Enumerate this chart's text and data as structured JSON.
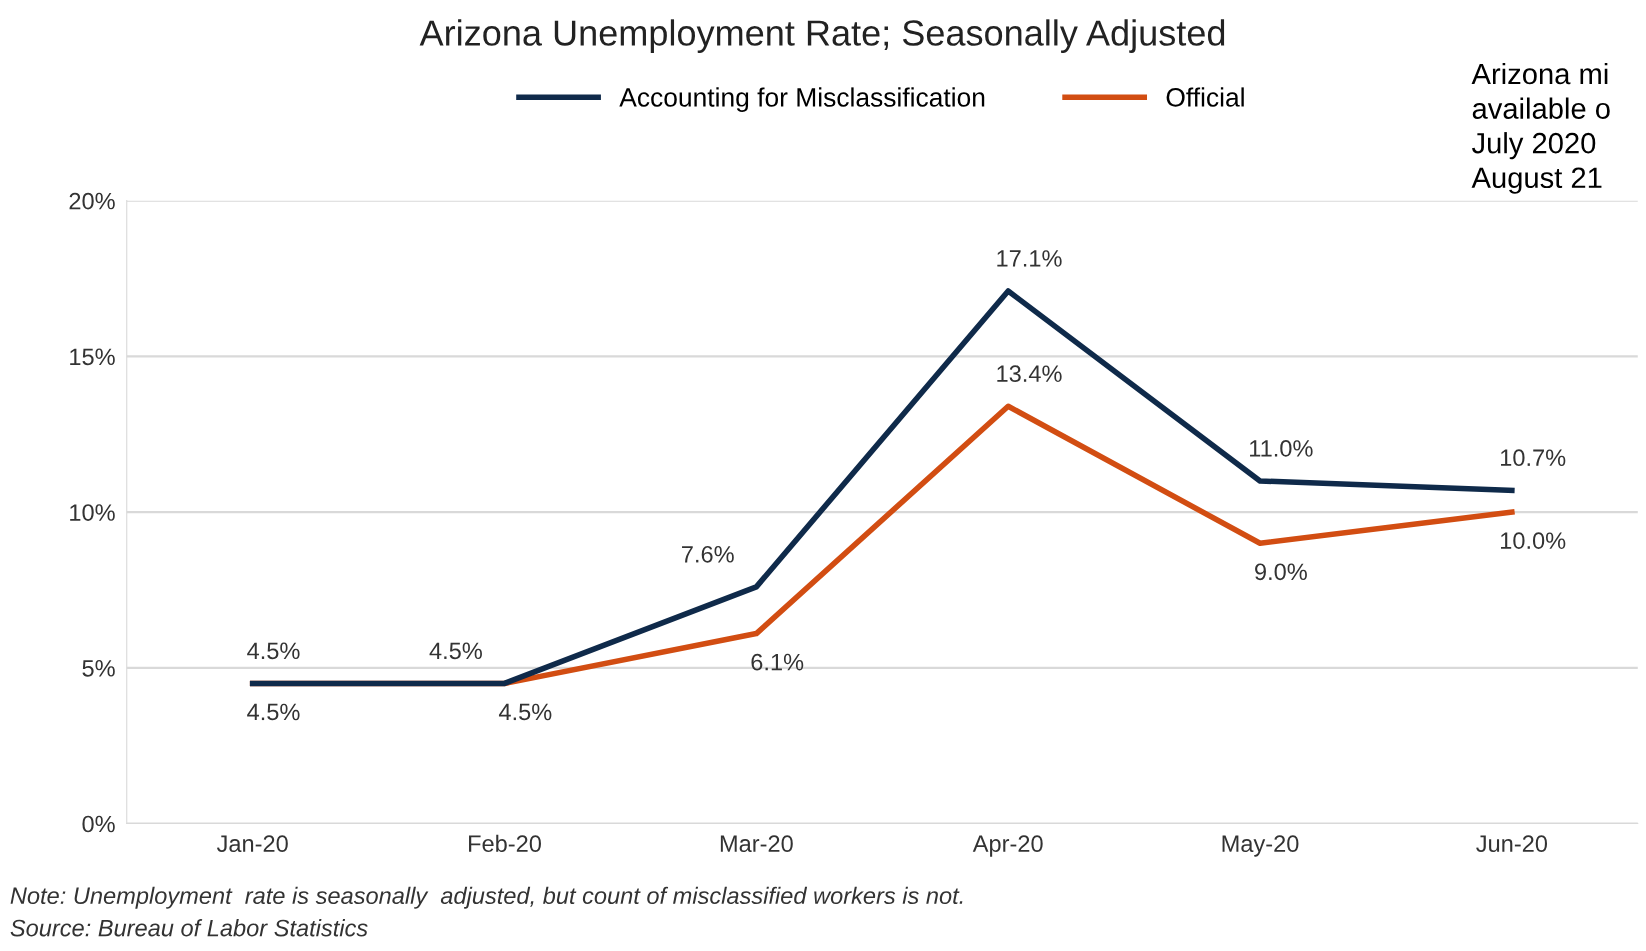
{
  "chart_data": {
    "type": "line",
    "title": "Arizona Unemployment Rate; Seasonally Adjusted",
    "categories": [
      "Jan-20",
      "Feb-20",
      "Mar-20",
      "Apr-20",
      "May-20",
      "Jun-20"
    ],
    "series": [
      {
        "name": "Accounting for Misclassification",
        "color": "#0f2a4a",
        "values": [
          4.5,
          4.5,
          7.6,
          17.1,
          11.0,
          10.7
        ],
        "value_labels": [
          "4.5%",
          "4.5%",
          "7.6%",
          "17.1%",
          "11.0%",
          "10.7%"
        ]
      },
      {
        "name": "Official",
        "color": "#d24d12",
        "values": [
          4.5,
          4.5,
          6.1,
          13.4,
          9.0,
          10.0
        ],
        "value_labels": [
          "4.5%",
          "4.5%",
          "6.1%",
          "13.4%",
          "9.0%",
          "10.0%"
        ]
      }
    ],
    "ylim": [
      0,
      20
    ],
    "yticks": [
      {
        "value": 0,
        "label": "0%"
      },
      {
        "value": 5,
        "label": "5%"
      },
      {
        "value": 10,
        "label": "10%"
      },
      {
        "value": 15,
        "label": "15%"
      },
      {
        "value": 20,
        "label": "20%"
      }
    ],
    "grid": "y",
    "legend": "top",
    "marker": "none",
    "line_style": "solid",
    "annotations": [
      "Note: Unemployment  rate is seasonally  adjusted, but count of misclassified workers is not.",
      "Source: Bureau of Labor Statistics",
      "Arizona mi\navailable o\nJuly 2020\nAugust 21"
    ]
  }
}
